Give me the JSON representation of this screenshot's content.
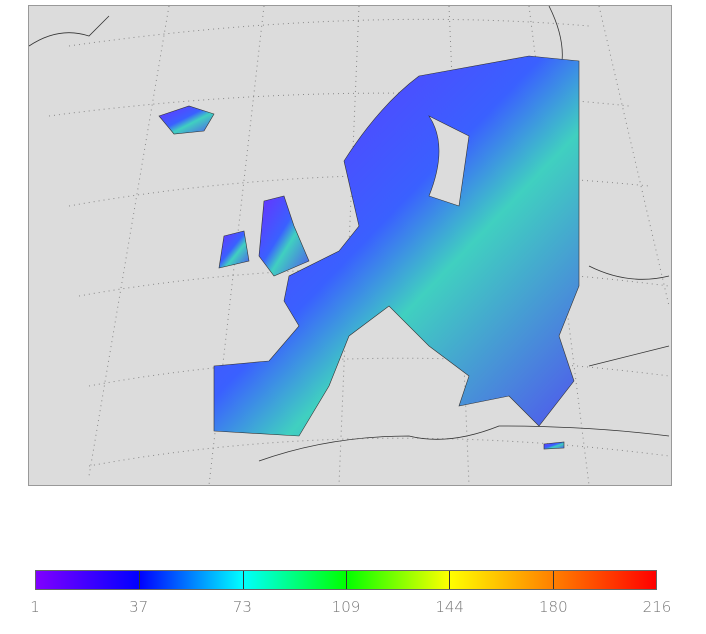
{
  "map": {
    "background_color": "#dcdcdc",
    "land_outline_color": "#333333",
    "graticule": "dotted"
  },
  "colorbar": {
    "ticks": [
      "1",
      "37",
      "73",
      "109",
      "144",
      "180",
      "216"
    ],
    "colors": [
      "#8000ff",
      "#0000ff",
      "#00ffff",
      "#00ff00",
      "#ffff00",
      "#ff8000",
      "#ff0000"
    ]
  }
}
